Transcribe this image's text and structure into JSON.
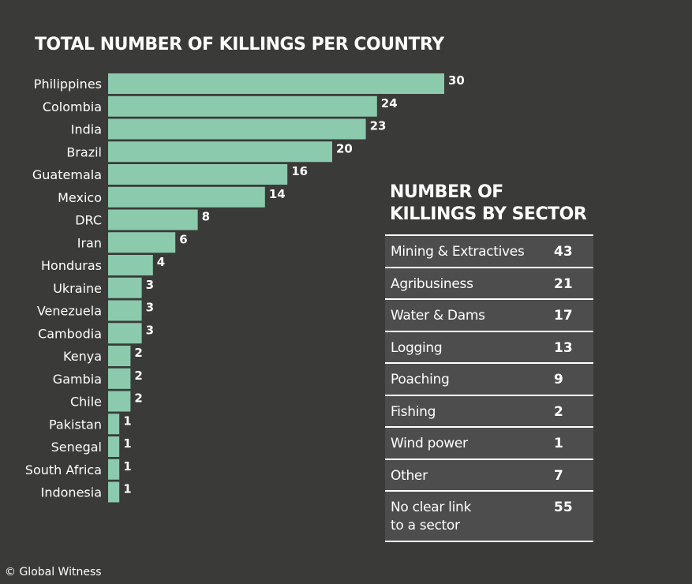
{
  "chart_data": [
    {
      "type": "bar",
      "orientation": "horizontal",
      "title": "TOTAL NUMBER OF KILLINGS PER COUNTRY",
      "categories": [
        "Philippines",
        "Colombia",
        "India",
        "Brazil",
        "Guatemala",
        "Mexico",
        "DRC",
        "Iran",
        "Honduras",
        "Ukraine",
        "Venezuela",
        "Cambodia",
        "Kenya",
        "Gambia",
        "Chile",
        "Pakistan",
        "Senegal",
        "South Africa",
        "Indonesia"
      ],
      "values": [
        30,
        24,
        23,
        20,
        16,
        14,
        8,
        6,
        4,
        3,
        3,
        3,
        2,
        2,
        2,
        1,
        1,
        1,
        1
      ],
      "xlim": [
        0,
        30
      ],
      "grid": false,
      "data_labels": true,
      "bar_color": "#8ccaad"
    },
    {
      "type": "table",
      "title": "NUMBER OF\nKILLINGS BY SECTOR",
      "rows": [
        {
          "label": "Mining & Extractives",
          "value": 43
        },
        {
          "label": "Agribusiness",
          "value": 21
        },
        {
          "label": "Water & Dams",
          "value": 17
        },
        {
          "label": "Logging",
          "value": 13
        },
        {
          "label": "Poaching",
          "value": 9
        },
        {
          "label": "Fishing",
          "value": 2
        },
        {
          "label": "Wind power",
          "value": 1
        },
        {
          "label": "Other",
          "value": 7
        },
        {
          "label": "No clear link\nto a sector",
          "value": 55
        }
      ]
    }
  ],
  "credit": "© Global Witness",
  "colors": {
    "background": "#3a3a39",
    "bar": "#8ccaad",
    "table_row": "#4d4d4d"
  }
}
